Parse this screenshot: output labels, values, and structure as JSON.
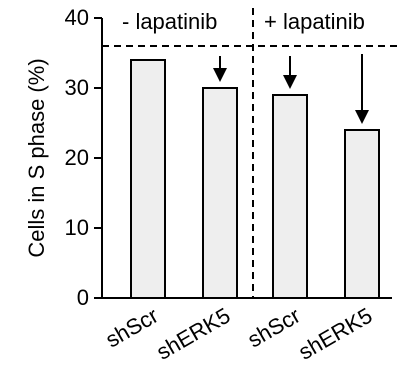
{
  "chart_data": {
    "type": "bar",
    "categories": [
      "shScr",
      "shERK5",
      "shScr",
      "shERK5"
    ],
    "values": [
      34,
      30,
      29,
      24
    ],
    "ylabel": "Cells in S phase (%)",
    "ylim": [
      0,
      40
    ],
    "yticks": [
      0,
      10,
      20,
      30,
      40
    ],
    "grid": false,
    "groups": [
      {
        "label": "- lapatinib"
      },
      {
        "label": "+ lapatinib"
      }
    ],
    "reference_line": {
      "y": 36,
      "style": "dashed"
    },
    "arrows_on_bars": [
      1,
      2,
      3
    ],
    "colors": {
      "bar_fill": "#eeeeee",
      "bar_stroke": "#000000",
      "axis": "#000000"
    }
  }
}
